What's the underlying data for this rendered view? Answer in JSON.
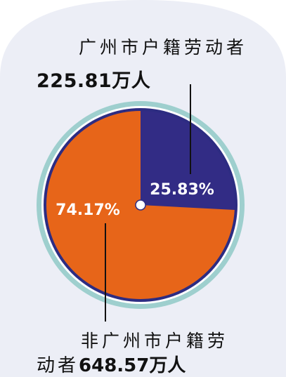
{
  "colors": {
    "background_panel": "#eceef6",
    "outer_ring": "#9ecfce",
    "ring_border": "#2d2c82",
    "slice_local": "#322c85",
    "slice_nonlocal": "#e76519",
    "center_dot": "#ffffff",
    "text_dark": "#111111",
    "text_light": "#ffffff"
  },
  "labels": {
    "local_title": "广州市户籍劳动者",
    "local_value": "225.81万人",
    "nonlocal_title_line1": "非广州市户籍劳",
    "nonlocal_title_line2_prefix": "动者",
    "nonlocal_value": "648.57万人"
  },
  "chart_data": {
    "type": "pie",
    "categories": [
      "广州市户籍劳动者",
      "非广州市户籍劳动者"
    ],
    "values": [
      25.83,
      74.17
    ],
    "unit": "%",
    "data_labels": [
      "25.83%",
      "74.17%"
    ],
    "absolute_values": [
      "225.81万人",
      "648.57万人"
    ],
    "slice_colors": [
      "#322c85",
      "#e76519"
    ]
  }
}
